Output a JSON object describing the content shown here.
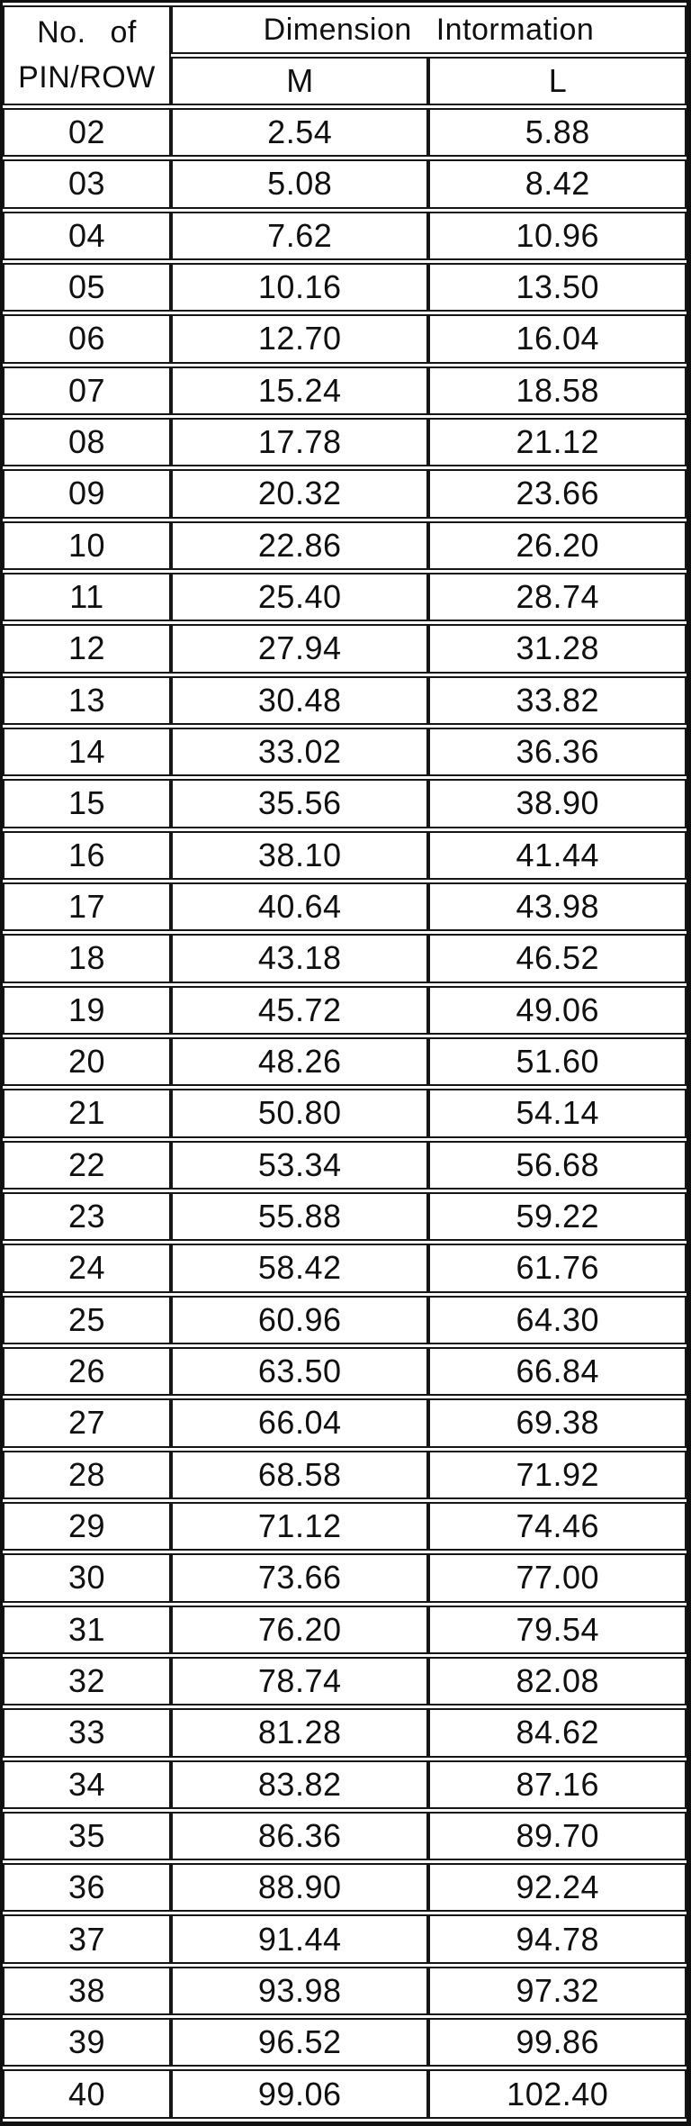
{
  "table": {
    "col1_header_line1": "No. of",
    "col1_header_line2": "PIN/ROW",
    "group_header": "Dimension Intormation",
    "sub_headers": {
      "m": "M",
      "l": "L"
    },
    "rows": [
      {
        "pin": "02",
        "m": "2.54",
        "l": "5.88"
      },
      {
        "pin": "03",
        "m": "5.08",
        "l": "8.42"
      },
      {
        "pin": "04",
        "m": "7.62",
        "l": "10.96"
      },
      {
        "pin": "05",
        "m": "10.16",
        "l": "13.50"
      },
      {
        "pin": "06",
        "m": "12.70",
        "l": "16.04"
      },
      {
        "pin": "07",
        "m": "15.24",
        "l": "18.58"
      },
      {
        "pin": "08",
        "m": "17.78",
        "l": "21.12"
      },
      {
        "pin": "09",
        "m": "20.32",
        "l": "23.66"
      },
      {
        "pin": "10",
        "m": "22.86",
        "l": "26.20"
      },
      {
        "pin": "11",
        "m": "25.40",
        "l": "28.74"
      },
      {
        "pin": "12",
        "m": "27.94",
        "l": "31.28"
      },
      {
        "pin": "13",
        "m": "30.48",
        "l": "33.82"
      },
      {
        "pin": "14",
        "m": "33.02",
        "l": "36.36"
      },
      {
        "pin": "15",
        "m": "35.56",
        "l": "38.90"
      },
      {
        "pin": "16",
        "m": "38.10",
        "l": "41.44"
      },
      {
        "pin": "17",
        "m": "40.64",
        "l": "43.98"
      },
      {
        "pin": "18",
        "m": "43.18",
        "l": "46.52"
      },
      {
        "pin": "19",
        "m": "45.72",
        "l": "49.06"
      },
      {
        "pin": "20",
        "m": "48.26",
        "l": "51.60"
      },
      {
        "pin": "21",
        "m": "50.80",
        "l": "54.14"
      },
      {
        "pin": "22",
        "m": "53.34",
        "l": "56.68"
      },
      {
        "pin": "23",
        "m": "55.88",
        "l": "59.22"
      },
      {
        "pin": "24",
        "m": "58.42",
        "l": "61.76"
      },
      {
        "pin": "25",
        "m": "60.96",
        "l": "64.30"
      },
      {
        "pin": "26",
        "m": "63.50",
        "l": "66.84"
      },
      {
        "pin": "27",
        "m": "66.04",
        "l": "69.38"
      },
      {
        "pin": "28",
        "m": "68.58",
        "l": "71.92"
      },
      {
        "pin": "29",
        "m": "71.12",
        "l": "74.46"
      },
      {
        "pin": "30",
        "m": "73.66",
        "l": "77.00"
      },
      {
        "pin": "31",
        "m": "76.20",
        "l": "79.54"
      },
      {
        "pin": "32",
        "m": "78.74",
        "l": "82.08"
      },
      {
        "pin": "33",
        "m": "81.28",
        "l": "84.62"
      },
      {
        "pin": "34",
        "m": "83.82",
        "l": "87.16"
      },
      {
        "pin": "35",
        "m": "86.36",
        "l": "89.70"
      },
      {
        "pin": "36",
        "m": "88.90",
        "l": "92.24"
      },
      {
        "pin": "37",
        "m": "91.44",
        "l": "94.78"
      },
      {
        "pin": "38",
        "m": "93.98",
        "l": "97.32"
      },
      {
        "pin": "39",
        "m": "96.52",
        "l": "99.86"
      },
      {
        "pin": "40",
        "m": "99.06",
        "l": "102.40"
      }
    ]
  },
  "colors": {
    "line": "#161616",
    "text": "#101010",
    "background": "#ffffff"
  },
  "chart_data": {
    "type": "table",
    "title": "Dimension Intormation",
    "categories": [
      "02",
      "03",
      "04",
      "05",
      "06",
      "07",
      "08",
      "09",
      "10",
      "11",
      "12",
      "13",
      "14",
      "15",
      "16",
      "17",
      "18",
      "19",
      "20",
      "21",
      "22",
      "23",
      "24",
      "25",
      "26",
      "27",
      "28",
      "29",
      "30",
      "31",
      "32",
      "33",
      "34",
      "35",
      "36",
      "37",
      "38",
      "39",
      "40"
    ],
    "series": [
      {
        "name": "M",
        "values": [
          2.54,
          5.08,
          7.62,
          10.16,
          12.7,
          15.24,
          17.78,
          20.32,
          22.86,
          25.4,
          27.94,
          30.48,
          33.02,
          35.56,
          38.1,
          40.64,
          43.18,
          45.72,
          48.26,
          50.8,
          53.34,
          55.88,
          58.42,
          60.96,
          63.5,
          66.04,
          68.58,
          71.12,
          73.66,
          76.2,
          78.74,
          81.28,
          83.82,
          86.36,
          88.9,
          91.44,
          93.98,
          96.52,
          99.06
        ]
      },
      {
        "name": "L",
        "values": [
          5.88,
          8.42,
          10.96,
          13.5,
          16.04,
          18.58,
          21.12,
          23.66,
          26.2,
          28.74,
          31.28,
          33.82,
          36.36,
          38.9,
          41.44,
          43.98,
          46.52,
          49.06,
          51.6,
          54.14,
          56.68,
          59.22,
          61.76,
          64.3,
          66.84,
          69.38,
          71.92,
          74.46,
          77.0,
          79.54,
          82.08,
          84.62,
          87.16,
          89.7,
          92.24,
          94.78,
          97.32,
          99.86,
          102.4
        ]
      }
    ]
  }
}
